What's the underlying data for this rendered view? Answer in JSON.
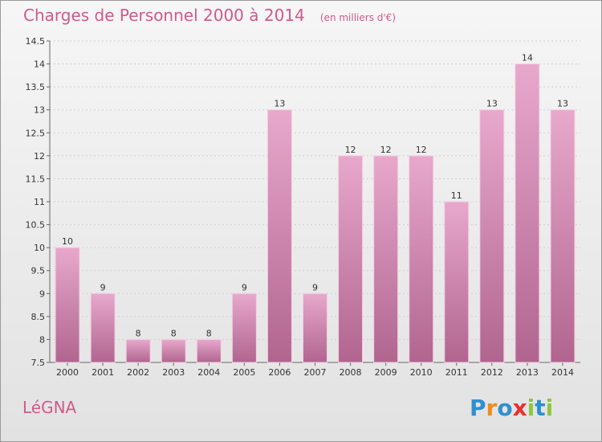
{
  "header": {
    "title": "Charges de Personnel 2000 à 2014",
    "subtitle": "(en milliers d'€)"
  },
  "footer": {
    "commune": "LéGNA",
    "logo": "Proxiti"
  },
  "colors": {
    "bar_light": "#e8a8cc",
    "bar_dark": "#b0658f",
    "title": "#d05a8a",
    "logo_letters": [
      "#2f8fd0",
      "#f08a1e",
      "#2f8fd0",
      "#e8322b",
      "#8fc640",
      "#2f8fd0",
      "#8fc640"
    ]
  },
  "chart_data": {
    "type": "bar",
    "title": "Charges de Personnel 2000 à 2014",
    "categories": [
      "2000",
      "2001",
      "2002",
      "2003",
      "2004",
      "2005",
      "2006",
      "2007",
      "2008",
      "2009",
      "2010",
      "2011",
      "2012",
      "2013",
      "2014"
    ],
    "values": [
      10,
      9,
      8,
      8,
      8,
      9,
      13,
      9,
      12,
      12,
      12,
      11,
      13,
      14,
      13
    ],
    "data_labels": [
      "10",
      "9",
      "8",
      "8",
      "8",
      "9",
      "13",
      "9",
      "12",
      "12",
      "12",
      "11",
      "13",
      "14",
      "13"
    ],
    "yticks": [
      "7.5",
      "8",
      "8.5",
      "9",
      "9.5",
      "10",
      "10.5",
      "11",
      "11.5",
      "12",
      "12.5",
      "13",
      "13.5",
      "14",
      "14.5"
    ],
    "ylim": [
      7.5,
      14.5
    ],
    "grid": true
  }
}
